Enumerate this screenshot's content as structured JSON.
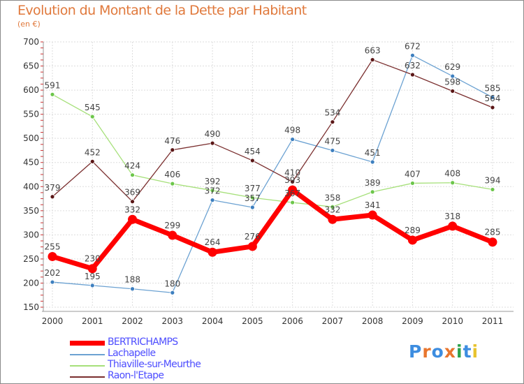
{
  "header": {
    "title": "Evolution du Montant de la Dette par Habitant",
    "unit": "(en €)"
  },
  "logo": {
    "text": "Proxiti",
    "colors": [
      "#3d8de0",
      "#e8762e",
      "#3d8de0",
      "#e8762e",
      "#2ca24a",
      "#3d8de0",
      "#e8c32e"
    ]
  },
  "chart_data": {
    "type": "line",
    "title": "Evolution du Montant de la Dette par Habitant",
    "ylabel": "(en €)",
    "xlabel": "",
    "x": [
      "2000",
      "2001",
      "2002",
      "2003",
      "2004",
      "2005",
      "2006",
      "2007",
      "2008",
      "2009",
      "2010",
      "2011"
    ],
    "ylim": [
      150,
      700
    ],
    "yticks": [
      150,
      200,
      250,
      300,
      350,
      400,
      450,
      500,
      550,
      600,
      650,
      700
    ],
    "grid": true,
    "legend_position": "bottom-left",
    "series": [
      {
        "name": "BERTRICHAMPS",
        "color": "#ff0000",
        "marker_color": "#ff0000",
        "width": 7,
        "values": [
          255,
          230,
          332,
          299,
          264,
          276,
          393,
          332,
          341,
          289,
          318,
          285
        ]
      },
      {
        "name": "Lachapelle",
        "color": "#6ca2d2",
        "marker_color": "#3d7fbf",
        "width": 1.3,
        "values": [
          202,
          195,
          188,
          180,
          372,
          357,
          498,
          475,
          451,
          672,
          629,
          585
        ]
      },
      {
        "name": "Thiaville-sur-Meurthe",
        "color": "#a6e07a",
        "marker_color": "#6cc64a",
        "width": 1.3,
        "values": [
          591,
          545,
          424,
          406,
          392,
          377,
          367,
          358,
          389,
          407,
          408,
          394
        ]
      },
      {
        "name": "Raon-l'Etape",
        "color": "#7a2e2e",
        "marker_color": "#5a1616",
        "width": 1.3,
        "values": [
          379,
          452,
          369,
          476,
          490,
          454,
          410,
          null,
          663,
          632,
          598,
          564
        ]
      }
    ],
    "labels": [
      {
        "series": "BERTRICHAMPS",
        "texts": [
          "255",
          "230",
          "332",
          "299",
          "264",
          "276",
          "393",
          "332",
          "341",
          "289",
          "318",
          "285"
        ]
      },
      {
        "series": "Lachapelle",
        "texts": [
          "202",
          "195",
          "188",
          "180",
          "372",
          "357",
          "498",
          "475",
          "451",
          "672",
          "629",
          "585"
        ]
      },
      {
        "series": "Thiaville-sur-Meurthe",
        "texts": [
          "591",
          "545",
          "424",
          "406",
          "392",
          "377",
          "367",
          "358",
          "389",
          "407",
          "408",
          "394"
        ]
      },
      {
        "series": "Raon-l'Etape",
        "texts": [
          "379",
          "452",
          "369",
          "476",
          "490",
          "454",
          "410",
          "534",
          "663",
          "632",
          "598",
          "564"
        ]
      }
    ],
    "raon_2007": 534
  }
}
